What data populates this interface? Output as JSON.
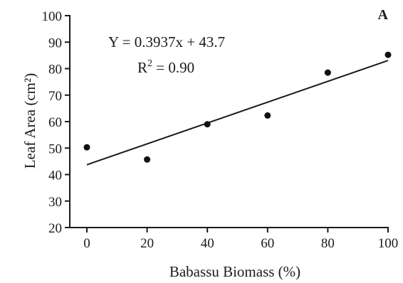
{
  "panel_label": "A",
  "chart_data": {
    "type": "scatter",
    "xlabel": "Babassu Biomass (%)",
    "ylabel": "Leaf Area (cm²)",
    "xlim": [
      0,
      100
    ],
    "ylim": [
      20,
      100
    ],
    "xticks": [
      0,
      20,
      40,
      60,
      80,
      100
    ],
    "yticks": [
      20,
      30,
      40,
      50,
      60,
      70,
      80,
      90,
      100
    ],
    "series": [
      {
        "x": [
          0,
          20,
          40,
          60,
          80,
          100
        ],
        "y": [
          50.3,
          45.7,
          59.0,
          62.3,
          78.5,
          85.2
        ]
      }
    ],
    "trendline": {
      "slope": 0.3937,
      "intercept": 43.7,
      "equation": "Y = 0.3937x + 43.7",
      "r2": "0.90"
    },
    "grid": false,
    "legend": "none"
  }
}
